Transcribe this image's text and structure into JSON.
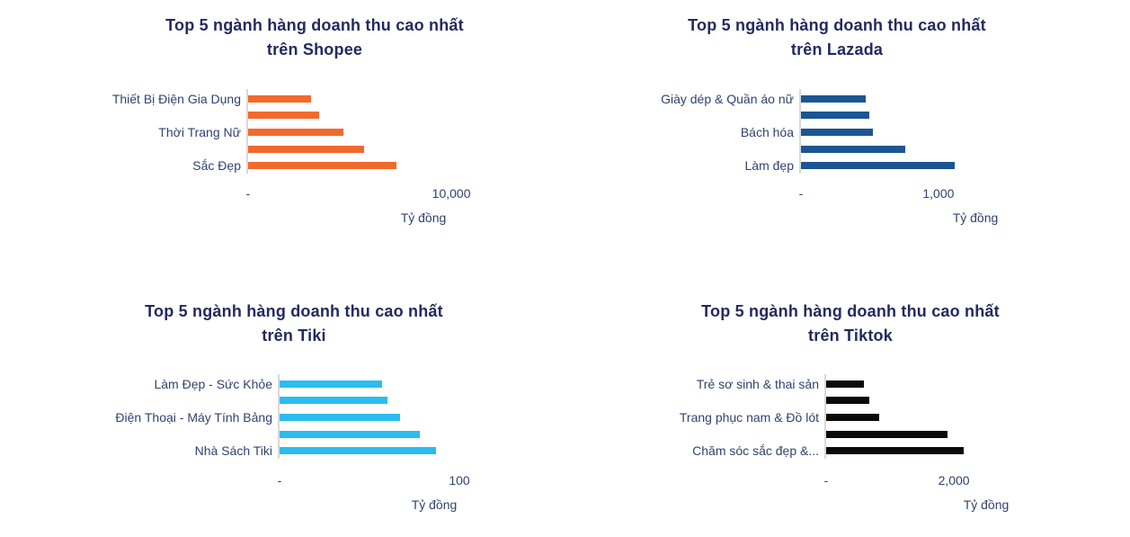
{
  "page": {
    "background": "#ffffff",
    "axis_unit_label": "Tỷ đồng"
  },
  "colors": {
    "title_text": "#232A60",
    "label_text": "#304271",
    "axis_line": "#D9D9D9"
  },
  "chart_data": [
    {
      "type": "bar",
      "orientation": "horizontal",
      "platform": "Shopee",
      "title": "Top 5 ngành hàng doanh thu cao nhất trên Shopee",
      "title_lines": [
        "Top 5 ngành hàng doanh thu cao nhất",
        "trên Shopee"
      ],
      "categories": [
        "Thiết Bị Điện Gia Dụng",
        "",
        "Thời Trang Nữ",
        "",
        "Sắc Đẹp"
      ],
      "values": [
        3100,
        3500,
        4700,
        5700,
        7300
      ],
      "bar_color": "#F2692D",
      "xlabel": "Tỷ đồng",
      "xlim": [
        0,
        11500
      ],
      "xticks": [
        {
          "value": 0,
          "label": "-"
        },
        {
          "value": 10000,
          "label": "10,000"
        }
      ],
      "grid": false,
      "legend": false
    },
    {
      "type": "bar",
      "orientation": "horizontal",
      "platform": "Lazada",
      "title": "Top 5 ngành hàng doanh thu cao nhất trên Lazada",
      "title_lines": [
        "Top 5 ngành hàng doanh thu cao nhất",
        "trên Lazada"
      ],
      "categories": [
        "Giày dép & Quần áo nữ",
        "",
        "Bách hóa",
        "",
        "Làm đẹp"
      ],
      "values": [
        470,
        500,
        520,
        760,
        1120
      ],
      "bar_color": "#1B5592",
      "xlabel": "Tỷ đồng",
      "xlim": [
        0,
        1700
      ],
      "xticks": [
        {
          "value": 0,
          "label": "-"
        },
        {
          "value": 1000,
          "label": "1,000"
        }
      ],
      "grid": false,
      "legend": false
    },
    {
      "type": "bar",
      "orientation": "horizontal",
      "platform": "Tiki",
      "title": "Top 5 ngành hàng doanh thu cao nhất trên Tiki",
      "title_lines": [
        "Top 5 ngành hàng doanh thu cao nhất",
        "trên Tiki"
      ],
      "categories": [
        "Làm Đẹp - Sức Khỏe",
        "",
        "Điện Thoại - Máy Tính Bảng",
        "",
        "Nhà Sách Tiki"
      ],
      "values": [
        57,
        60,
        67,
        78,
        87
      ],
      "bar_color": "#2BBCF0",
      "xlabel": "Tỷ đồng",
      "xlim": [
        0,
        130
      ],
      "xticks": [
        {
          "value": 0,
          "label": "-"
        },
        {
          "value": 100,
          "label": "100"
        }
      ],
      "grid": false,
      "legend": false
    },
    {
      "type": "bar",
      "orientation": "horizontal",
      "platform": "Tiktok",
      "title": "Top 5 ngành hàng doanh thu cao nhất trên Tiktok",
      "title_lines": [
        "Top 5 ngành hàng doanh thu cao nhất",
        "trên Tiktok"
      ],
      "categories": [
        "Trẻ sơ sinh & thai sản",
        "",
        "Trang phục nam & Đồ lót",
        "",
        "Chăm sóc sắc đẹp &..."
      ],
      "values": [
        590,
        680,
        830,
        1900,
        2150
      ],
      "bar_color": "#0A0A0A",
      "xlabel": "Tỷ đồng",
      "xlim": [
        0,
        3660
      ],
      "xticks": [
        {
          "value": 0,
          "label": "-"
        },
        {
          "value": 2000,
          "label": "2,000"
        }
      ],
      "grid": false,
      "legend": false
    }
  ]
}
